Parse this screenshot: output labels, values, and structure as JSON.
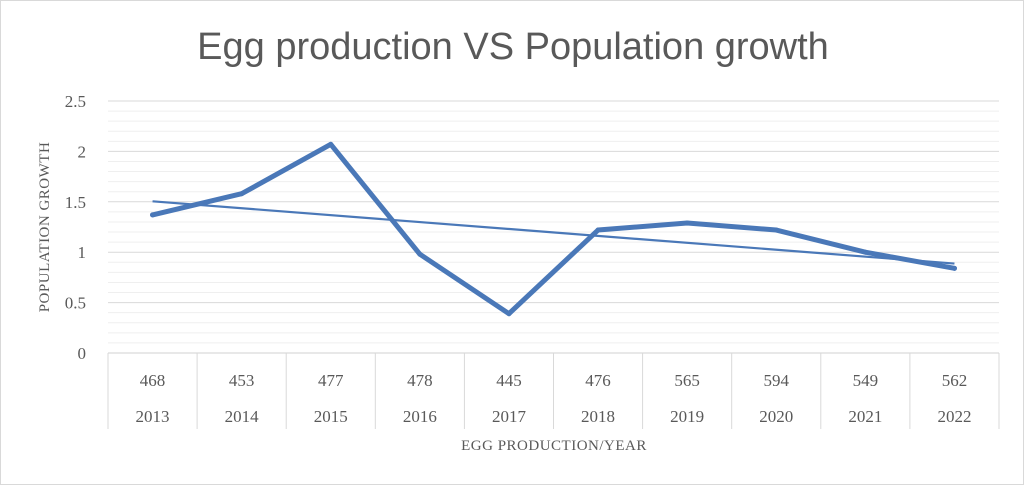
{
  "chart_data": {
    "type": "line",
    "title": "Egg production VS Population growth",
    "xlabel": "EGG PRODUCTION/YEAR",
    "ylabel": "POPULATION GROWTH",
    "ylim": [
      0,
      2.5
    ],
    "y_ticks": [
      "0",
      "0.5",
      "1",
      "1.5",
      "2",
      "2.5"
    ],
    "categories": [
      "2013",
      "2014",
      "2015",
      "2016",
      "2017",
      "2018",
      "2019",
      "2020",
      "2021",
      "2022"
    ],
    "egg_production": [
      "468",
      "453",
      "477",
      "478",
      "445",
      "476",
      "565",
      "594",
      "549",
      "562"
    ],
    "series": [
      {
        "values": [
          1.37,
          1.58,
          2.07,
          0.98,
          0.39,
          1.22,
          1.29,
          1.22,
          1.0,
          0.84
        ],
        "color": "#4a78b8"
      }
    ],
    "trendline": {
      "type": "linear",
      "color": "#4a78b8"
    },
    "grid": true,
    "minor_grid": true,
    "legend": "none"
  }
}
